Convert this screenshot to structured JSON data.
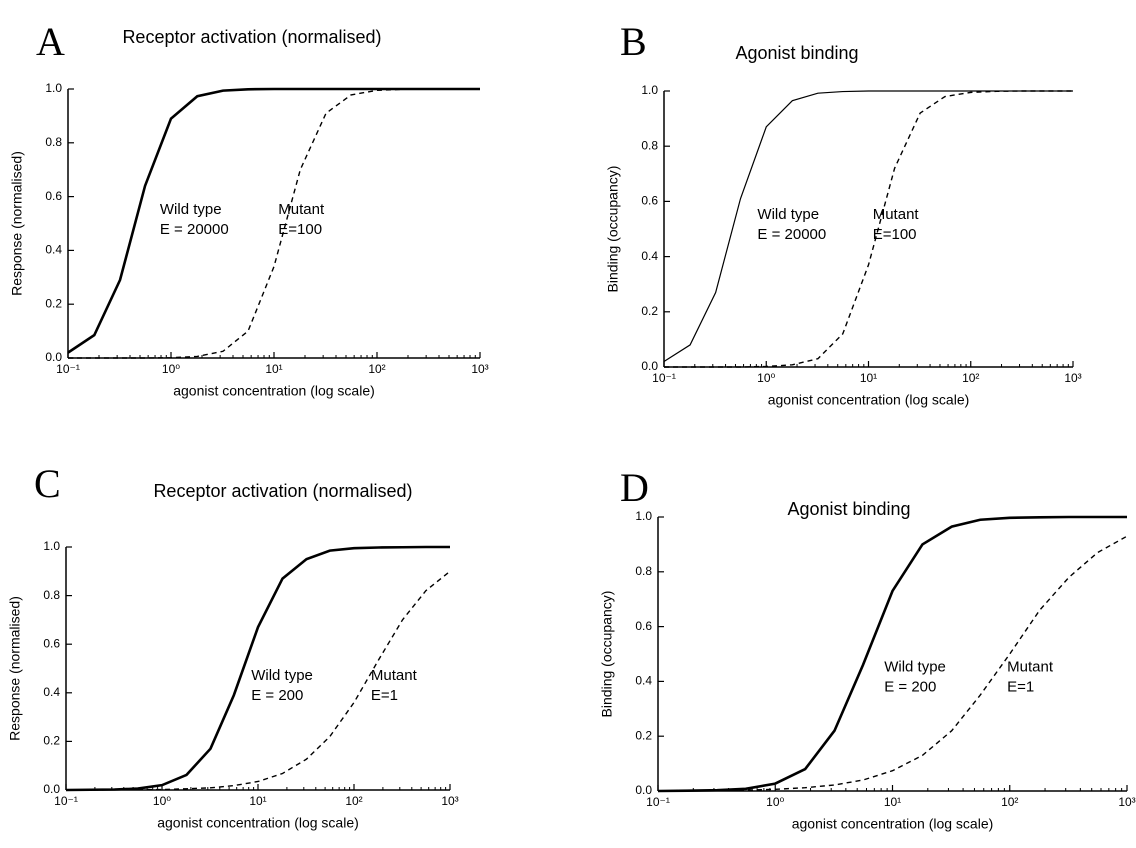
{
  "chart_data": [
    {
      "type": "line",
      "panel": "A",
      "title": "Receptor activation (normalised)",
      "xlabel": "agonist concentration (log scale)",
      "ylabel": "Response (normalised)",
      "log_x": true,
      "x": [
        0.1,
        0.18,
        0.32,
        0.56,
        1,
        1.8,
        3.2,
        5.6,
        10,
        18,
        32,
        56,
        100,
        180,
        320,
        560,
        1000
      ],
      "series": [
        {
          "name": "Wild type",
          "color": "#000000",
          "linestyle": "solid",
          "linewidth": 2.6,
          "values": [
            0.02,
            0.085,
            0.29,
            0.64,
            0.89,
            0.973,
            0.994,
            0.999,
            1,
            1,
            1,
            1,
            1,
            1,
            1,
            1,
            1
          ]
        },
        {
          "name": "Mutant",
          "color": "#000000",
          "linestyle": "dashed",
          "linewidth": 1.4,
          "values": [
            0,
            0,
            0,
            0,
            0.001,
            0.006,
            0.025,
            0.1,
            0.34,
            0.7,
            0.91,
            0.978,
            0.995,
            0.999,
            1,
            1,
            1
          ]
        }
      ],
      "annotations": [
        "E = 20000",
        "E=100"
      ],
      "xlim": [
        0.1,
        1000
      ],
      "xticks": [
        {
          "value": 0.1,
          "label": "10⁻¹"
        },
        {
          "value": 1,
          "label": "10⁰"
        },
        {
          "value": 10,
          "label": "10¹"
        },
        {
          "value": 100,
          "label": "10²"
        },
        {
          "value": 1000,
          "label": "10³"
        }
      ],
      "ylim": [
        0,
        1
      ],
      "yticks": [
        {
          "value": 0,
          "label": "0.0"
        },
        0.2,
        0.4,
        0.6,
        0.8,
        {
          "value": 1,
          "label": "1.0"
        }
      ]
    },
    {
      "type": "line",
      "panel": "B",
      "title": "Agonist binding",
      "xlabel": "agonist concentration (log scale)",
      "ylabel": "Binding (occupancy)",
      "log_x": true,
      "x": [
        0.1,
        0.18,
        0.32,
        0.56,
        1,
        1.8,
        3.2,
        5.6,
        10,
        18,
        32,
        56,
        100,
        180,
        320,
        560,
        1000
      ],
      "series": [
        {
          "name": "Wild type",
          "color": "#000000",
          "linestyle": "solid",
          "linewidth": 1.2,
          "values": [
            0.02,
            0.08,
            0.27,
            0.61,
            0.87,
            0.965,
            0.992,
            0.998,
            1,
            1,
            1,
            1,
            1,
            1,
            1,
            1,
            1
          ]
        },
        {
          "name": "Mutant",
          "color": "#000000",
          "linestyle": "dashed",
          "linewidth": 1.4,
          "values": [
            0,
            0,
            0,
            0,
            0.002,
            0.008,
            0.03,
            0.12,
            0.37,
            0.72,
            0.92,
            0.98,
            0.995,
            0.999,
            1,
            1,
            1
          ]
        }
      ],
      "annotations": [
        "E = 20000",
        "E=100"
      ],
      "xlim": [
        0.1,
        1000
      ],
      "xticks": [
        {
          "value": 0.1,
          "label": "10⁻¹"
        },
        {
          "value": 1,
          "label": "10⁰"
        },
        {
          "value": 10,
          "label": "10¹"
        },
        {
          "value": 100,
          "label": "10²"
        },
        {
          "value": 1000,
          "label": "10³"
        }
      ],
      "ylim": [
        0,
        1
      ],
      "yticks": [
        {
          "value": 0,
          "label": "0.0"
        },
        0.2,
        0.4,
        0.6,
        0.8,
        {
          "value": 1,
          "label": "1.0"
        }
      ]
    },
    {
      "type": "line",
      "panel": "C",
      "title": "Receptor activation (normalised)",
      "xlabel": "agonist concentration (log scale)",
      "ylabel": "Response (normalised)",
      "log_x": true,
      "x": [
        0.1,
        0.18,
        0.32,
        0.56,
        1,
        1.8,
        3.2,
        5.6,
        10,
        18,
        32,
        56,
        100,
        180,
        320,
        560,
        1000
      ],
      "series": [
        {
          "name": "Wild type",
          "color": "#000000",
          "linestyle": "solid",
          "linewidth": 2.6,
          "values": [
            0,
            0.001,
            0.002,
            0.006,
            0.02,
            0.062,
            0.17,
            0.39,
            0.67,
            0.87,
            0.95,
            0.985,
            0.995,
            0.998,
            0.999,
            1,
            1
          ]
        },
        {
          "name": "Mutant",
          "color": "#000000",
          "linestyle": "dashed",
          "linewidth": 1.4,
          "values": [
            0,
            0,
            0.001,
            0.001,
            0.002,
            0.005,
            0.009,
            0.018,
            0.035,
            0.068,
            0.127,
            0.22,
            0.36,
            0.535,
            0.7,
            0.82,
            0.9
          ]
        }
      ],
      "annotations": [
        "E = 200",
        "E=1"
      ],
      "xlim": [
        0.1,
        1000
      ],
      "xticks": [
        {
          "value": 0.1,
          "label": "10⁻¹"
        },
        {
          "value": 1,
          "label": "10⁰"
        },
        {
          "value": 10,
          "label": "10¹"
        },
        {
          "value": 100,
          "label": "10²"
        },
        {
          "value": 1000,
          "label": "10³"
        }
      ],
      "ylim": [
        0,
        1
      ],
      "yticks": [
        {
          "value": 0,
          "label": "0.0"
        },
        0.2,
        0.4,
        0.6,
        0.8,
        {
          "value": 1,
          "label": "1.0"
        }
      ]
    },
    {
      "type": "line",
      "panel": "D",
      "title": "Agonist binding",
      "xlabel": "agonist concentration (log scale)",
      "ylabel": "Binding (occupancy)",
      "log_x": true,
      "x": [
        0.1,
        0.18,
        0.32,
        0.56,
        1,
        1.8,
        3.2,
        5.6,
        10,
        18,
        32,
        56,
        100,
        180,
        320,
        560,
        1000
      ],
      "series": [
        {
          "name": "Wild type",
          "color": "#000000",
          "linestyle": "solid",
          "linewidth": 2.6,
          "values": [
            0,
            0.001,
            0.003,
            0.008,
            0.027,
            0.08,
            0.22,
            0.46,
            0.73,
            0.9,
            0.965,
            0.99,
            0.997,
            0.999,
            1,
            1,
            1
          ]
        },
        {
          "name": "Mutant",
          "color": "#000000",
          "linestyle": "dashed",
          "linewidth": 1.4,
          "values": [
            0.001,
            0.001,
            0.002,
            0.003,
            0.006,
            0.012,
            0.022,
            0.04,
            0.074,
            0.13,
            0.22,
            0.35,
            0.5,
            0.66,
            0.78,
            0.87,
            0.93
          ]
        }
      ],
      "annotations": [
        "E = 200",
        "E=1"
      ],
      "xlim": [
        0.1,
        1000
      ],
      "xticks": [
        {
          "value": 0.1,
          "label": "10⁻¹"
        },
        {
          "value": 1,
          "label": "10⁰"
        },
        {
          "value": 10,
          "label": "10¹"
        },
        {
          "value": 100,
          "label": "10²"
        },
        {
          "value": 1000,
          "label": "10³"
        }
      ],
      "ylim": [
        0,
        1
      ],
      "yticks": [
        {
          "value": 0,
          "label": "0.0"
        },
        0.2,
        0.4,
        0.6,
        0.8,
        {
          "value": 1,
          "label": "1.0"
        }
      ]
    }
  ]
}
